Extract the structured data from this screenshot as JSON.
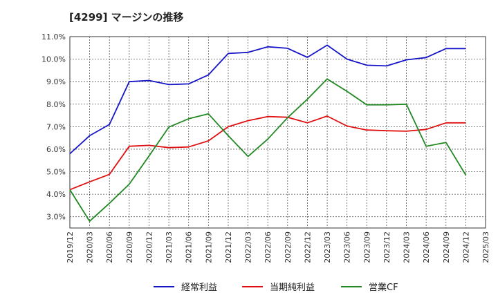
{
  "title": "[4299]  マージンの推移",
  "chart_data": {
    "type": "line",
    "title": "[4299]  マージンの推移",
    "xlabel": "",
    "ylabel": "",
    "x": [
      "2019/12",
      "2020/03",
      "2020/06",
      "2020/09",
      "2020/12",
      "2021/03",
      "2021/06",
      "2021/09",
      "2021/12",
      "2022/03",
      "2022/06",
      "2022/09",
      "2022/12",
      "2023/03",
      "2023/06",
      "2023/09",
      "2023/12",
      "2024/03",
      "2024/06",
      "2024/09",
      "2024/12",
      "2025/03"
    ],
    "yticks": [
      "3.0%",
      "4.0%",
      "5.0%",
      "6.0%",
      "7.0%",
      "8.0%",
      "9.0%",
      "10.0%",
      "11.0%"
    ],
    "ylim": [
      2.5,
      11.0
    ],
    "grid": true,
    "legend_position": "bottom",
    "series": [
      {
        "name": "経常利益",
        "color": "#1515c8",
        "values": [
          5.8,
          6.6,
          7.1,
          9.0,
          9.05,
          8.87,
          8.9,
          9.3,
          10.25,
          10.3,
          10.55,
          10.48,
          10.08,
          10.62,
          10.0,
          9.73,
          9.7,
          9.97,
          10.07,
          10.47,
          10.47,
          null
        ]
      },
      {
        "name": "当期純利益",
        "color": "#e01010",
        "values": [
          4.2,
          4.55,
          4.88,
          6.13,
          6.17,
          6.07,
          6.1,
          6.37,
          7.0,
          7.27,
          7.45,
          7.42,
          7.17,
          7.47,
          7.03,
          6.85,
          6.82,
          6.8,
          6.88,
          7.17,
          7.17,
          null
        ]
      },
      {
        "name": "営業CF",
        "color": "#228822",
        "values": [
          4.2,
          2.8,
          3.6,
          4.45,
          5.7,
          6.98,
          7.35,
          7.57,
          6.6,
          5.68,
          6.45,
          7.4,
          8.22,
          9.12,
          8.57,
          7.97,
          7.97,
          8.0,
          6.13,
          6.3,
          4.85,
          null
        ]
      }
    ]
  }
}
